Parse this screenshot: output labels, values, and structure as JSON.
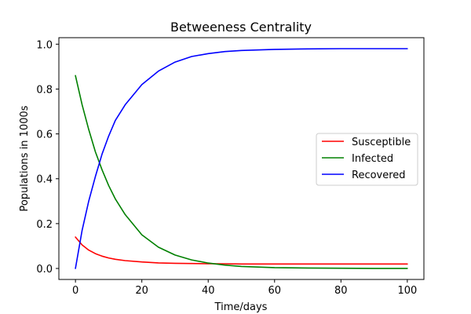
{
  "chart_data": {
    "type": "line",
    "title": "Betweeness Centrality",
    "xlabel": "Time/days",
    "ylabel": "Populations in 1000s",
    "xlim": [
      -5,
      105
    ],
    "ylim": [
      -0.049,
      1.029
    ],
    "x_ticks": [
      0,
      20,
      40,
      60,
      80,
      100
    ],
    "y_ticks": [
      0.0,
      0.2,
      0.4,
      0.6,
      0.8,
      1.0
    ],
    "x_tick_labels": [
      "0",
      "20",
      "40",
      "60",
      "80",
      "100"
    ],
    "y_tick_labels": [
      "0.0",
      "0.2",
      "0.4",
      "0.6",
      "0.8",
      "1.0"
    ],
    "grid": false,
    "legend_position": "center-right",
    "x": [
      0,
      2,
      4,
      6,
      8,
      10,
      12,
      15,
      20,
      25,
      30,
      35,
      40,
      45,
      50,
      60,
      70,
      80,
      90,
      100
    ],
    "series": [
      {
        "name": "Susceptible",
        "color": "#ff0000",
        "values": [
          0.14,
          0.105,
          0.082,
          0.066,
          0.055,
          0.047,
          0.041,
          0.035,
          0.029,
          0.025,
          0.023,
          0.022,
          0.021,
          0.021,
          0.02,
          0.02,
          0.02,
          0.02,
          0.02,
          0.02
        ]
      },
      {
        "name": "Infected",
        "color": "#008000",
        "values": [
          0.86,
          0.73,
          0.62,
          0.52,
          0.44,
          0.37,
          0.31,
          0.24,
          0.15,
          0.095,
          0.06,
          0.038,
          0.024,
          0.015,
          0.009,
          0.004,
          0.002,
          0.001,
          0.0005,
          0.0003
        ]
      },
      {
        "name": "Recovered",
        "color": "#0000ff",
        "values": [
          0.0,
          0.17,
          0.3,
          0.41,
          0.51,
          0.59,
          0.66,
          0.73,
          0.82,
          0.88,
          0.92,
          0.945,
          0.958,
          0.967,
          0.972,
          0.977,
          0.979,
          0.98,
          0.98,
          0.98
        ]
      }
    ]
  }
}
